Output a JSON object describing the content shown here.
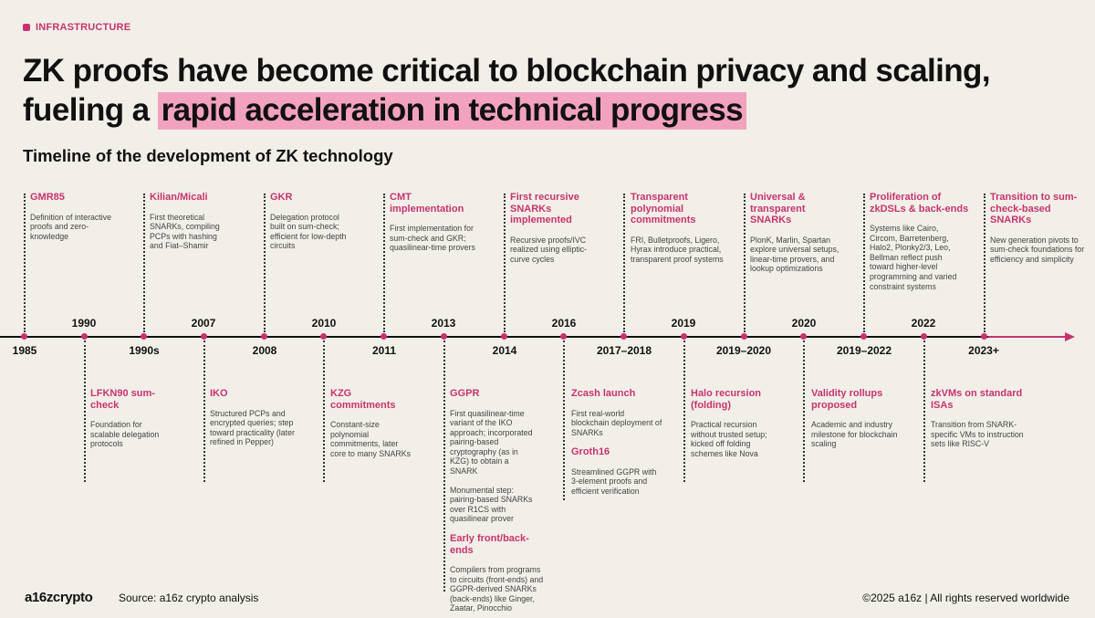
{
  "tag": "INFRASTRUCTURE",
  "headline": {
    "part1": "ZK proofs have become critical to blockchain privacy and scaling,",
    "part2": "fueling a ",
    "highlight": "rapid acceleration in technical progress"
  },
  "subtitle": "Timeline of the development of ZK technology",
  "years_above": [
    "1990",
    "2007",
    "2010",
    "2013",
    "2016",
    "2019",
    "2020",
    "2022"
  ],
  "years_below": [
    "1985",
    "1990s",
    "2008",
    "2011",
    "2014",
    "2017–2018",
    "2019–2020",
    "2019–2022",
    "2023+"
  ],
  "events_top": [
    {
      "title": "GMR85",
      "desc": "Definition of interactive proofs and zero-knowledge"
    },
    {
      "title": "Kilian/Micali",
      "desc": "First theoretical SNARKs, compiling PCPs with hashing and Fiat–Shamir"
    },
    {
      "title": "GKR",
      "desc": "Delegation protocol built on sum-check; efficient for low-depth circuits"
    },
    {
      "title": "CMT implementation",
      "desc": "First implementation for sum-check and GKR; quasilinear-time provers"
    },
    {
      "title": "First recursive SNARKs implemented",
      "desc": "Recursive proofs/IVC realized using elliptic-curve cycles"
    },
    {
      "title": "Transparent polynomial commitments",
      "desc": "FRI, Bulletproofs, Ligero, Hyrax introduce practical, transparent proof systems"
    },
    {
      "title": "Universal & transparent SNARKs",
      "desc": "PlonK, Marlin, Spartan explore universal setups, linear-time provers, and lookup optimizations"
    },
    {
      "title": "Proliferation of zkDSLs & back-ends",
      "desc": "Systems like Cairo, Circom, Barretenberg, Halo2, Plonky2/3, Leo, Bellman reflect push toward higher-level programming and varied constraint systems"
    },
    {
      "title": "Transition to sum-check-based SNARKs",
      "desc": "New generation pivots to sum-check foundations for efficiency and simplicity"
    }
  ],
  "events_bottom": [
    {
      "title": "LFKN90 sum-check",
      "desc": "Foundation for scalable delegation protocols"
    },
    {
      "title": "IKO",
      "desc": "Structured PCPs and encrypted queries; step toward practicality (later refined in Pepper)"
    },
    {
      "title": "KZG commitments",
      "desc": "Constant-size polynomial commitments, later core to many SNARKs"
    },
    {
      "title": "GGPR",
      "desc": "First quasilinear-time variant of the IKO approach; incorporated pairing-based cryptography (as in KZG) to obtain a SNARK",
      "desc2": "Monumental step: pairing-based SNARKs over R1CS with quasilinear prover",
      "title2": "Early front/back-ends",
      "desc3": "Compilers from programs to circuits (front-ends) and GGPR-derived SNARKs (back-ends) like Ginger, Zaatar, Pinocchio"
    },
    {
      "title": "Zcash launch",
      "desc": "First real-world blockchain deployment of SNARKs",
      "title2": "Groth16",
      "desc2": "Streamlined GGPR with 3-element proofs and efficient verification"
    },
    {
      "title": "Halo recursion (folding)",
      "desc": "Practical recursion without trusted setup; kicked off folding schemes like Nova"
    },
    {
      "title": "Validity rollups proposed",
      "desc": "Academic and industry milestone for blockchain scaling"
    },
    {
      "title": "zkVMs on standard ISAs",
      "desc": "Transition from SNARK-specific VMs to instruction sets like RISC-V"
    }
  ],
  "footer": {
    "logo": "a16zcrypto",
    "source": "Source: a16z crypto analysis",
    "copyright": "©2025 a16z | All rights reserved worldwide"
  },
  "colors": {
    "accent": "#c8336f",
    "highlight": "#f2a2bf",
    "background": "#f1efe8"
  }
}
